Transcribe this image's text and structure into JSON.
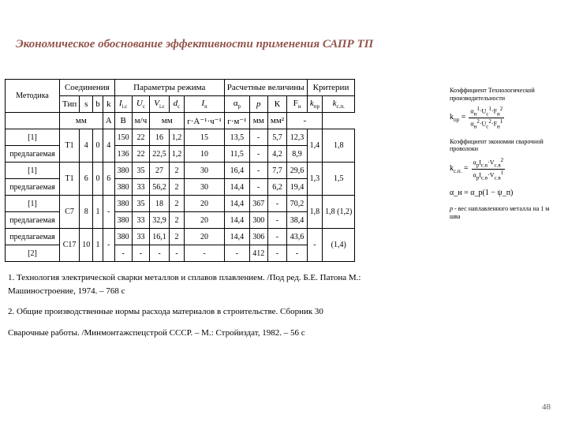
{
  "title": "Экономическое обоснование эффективности применения САПР ТП",
  "table": {
    "group_headers": [
      "Методика",
      "Соединения",
      "Параметры режима",
      "Расчетные величины",
      "Критерии"
    ],
    "sub_headers": [
      "Тип",
      "s",
      "b",
      "k",
      "I_{i.c}",
      "U_c",
      "V_{i.c}",
      "d_c",
      "I_n",
      "α_p",
      "p",
      "К",
      "F_н",
      "k_{np}",
      "k_{c.п.}"
    ],
    "unit_row": [
      "",
      "мм",
      "",
      "",
      "А",
      "В",
      "м/ч",
      "мм",
      "",
      "г·А⁻¹·ч⁻¹",
      "г·м⁻¹",
      "мм",
      "мм²",
      "-",
      ""
    ],
    "rows": [
      [
        "[1]",
        "T1",
        "4",
        "0",
        "4",
        "150",
        "22",
        "16",
        "1,2",
        "15",
        "13,5",
        "-",
        "5,7",
        "12,3",
        "1,4",
        "1,8"
      ],
      [
        "предлагаемая",
        "",
        "",
        "",
        "",
        "136",
        "22",
        "22,5",
        "1,2",
        "10",
        "11,5",
        "-",
        "4,2",
        "8,9",
        "",
        ""
      ],
      [
        "[1]",
        "T1",
        "6",
        "0",
        "6",
        "380",
        "35",
        "27",
        "2",
        "30",
        "16,4",
        "-",
        "7,7",
        "29,6",
        "1,3",
        "1,5"
      ],
      [
        "предлагаемая",
        "",
        "",
        "",
        "",
        "380",
        "33",
        "56,2",
        "2",
        "30",
        "14,4",
        "-",
        "6,2",
        "19,4",
        "",
        ""
      ],
      [
        "[1]",
        "C7",
        "8",
        "1",
        "-",
        "380",
        "35",
        "18",
        "2",
        "20",
        "14,4",
        "367",
        "-",
        "70,2",
        "1,8",
        "1,8 (1,2)"
      ],
      [
        "предлагаемая",
        "",
        "",
        "",
        "",
        "380",
        "33",
        "32,9",
        "2",
        "20",
        "14,4",
        "300",
        "-",
        "38,4",
        "",
        ""
      ],
      [
        "предлагаемая",
        "C17",
        "10",
        "1",
        "-",
        "380",
        "33",
        "16,1",
        "2",
        "20",
        "14,4",
        "306",
        "-",
        "43,6",
        "-",
        "(1,4)"
      ],
      [
        "[2]",
        "",
        "",
        "",
        "",
        "-",
        "-",
        "-",
        "-",
        "-",
        "-",
        "412",
        "-",
        "-",
        "",
        ""
      ]
    ]
  },
  "refs": [
    "1.  Технология электрической сварки металлов и сплавов плавлением. /Под ред. Б.Е. Патона М.: Машиностроение, 1974. – 768 с",
    "2.  Общие производственные нормы расхода материалов в строительстве. Сборник 30",
    "Сварочные работы. /Минмонтажспецстрой СССР. – М.: Стройиздат, 1982. – 56 с"
  ],
  "side": {
    "label1": "Коэффициент Технологической производительности",
    "formula1": {
      "lhs": "k_{пр}",
      "num": "α_н¹·U_c¹·F_н²",
      "den": "α_н²·U_c²·F_н¹"
    },
    "label2": "Коэффициент экономии сварочной проволоки",
    "formula2": {
      "lhs": "k_{с.п.}",
      "num": "α_р¹·I_{с.в}¹·V_{с.в}²",
      "den": "α_р²·I_{с.в}²·V_{с.в}¹"
    },
    "formula3": "α_н = α_р(1 − ψ_п)",
    "label3_prefix": "p",
    "label3": " - вес наплавленного металла на 1 м шва"
  },
  "pagenum": "48"
}
